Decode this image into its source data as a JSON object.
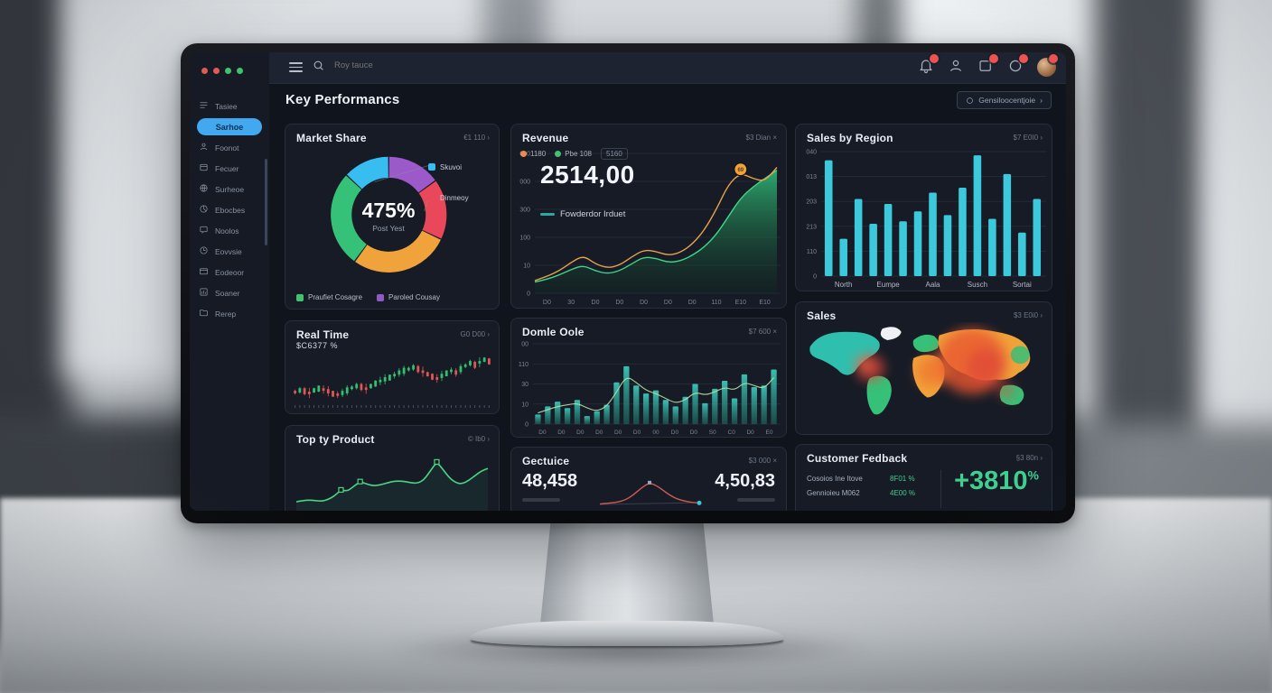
{
  "window": {
    "dot_colors": [
      "#e05c55",
      "#e05c55",
      "#42c26d",
      "#42c26d"
    ]
  },
  "topbar": {
    "search_placeholder": "Roy tauce",
    "icons": [
      {
        "name": "notification-bell-icon",
        "glyph": "bell",
        "badge": true
      },
      {
        "name": "user-icon",
        "glyph": "user",
        "badge": false
      },
      {
        "name": "inbox-icon",
        "glyph": "inbox",
        "badge": true
      },
      {
        "name": "alert-ring-icon",
        "glyph": "ring",
        "badge": true
      },
      {
        "name": "avatar",
        "glyph": "avatar",
        "badge": true
      }
    ]
  },
  "sidebar": {
    "active_color": "#42a9f0",
    "items": [
      {
        "label": "Tasiee",
        "icon": "list",
        "active": false
      },
      {
        "label": "Sarhoe",
        "icon": "",
        "active": true
      },
      {
        "label": "Foonot",
        "icon": "user",
        "active": false
      },
      {
        "label": "Fecuer",
        "icon": "box",
        "active": false
      },
      {
        "label": "Surheoe",
        "icon": "globe",
        "active": false
      },
      {
        "label": "Ebocbes",
        "icon": "pie",
        "active": false
      },
      {
        "label": "Noolos",
        "icon": "chat",
        "active": false
      },
      {
        "label": "Eovvsie",
        "icon": "clock",
        "active": false
      },
      {
        "label": "Eodeoor",
        "icon": "card",
        "active": false
      },
      {
        "label": "Soaner",
        "icon": "chart",
        "active": false
      },
      {
        "label": "Rerep",
        "icon": "folder",
        "active": false
      }
    ]
  },
  "page": {
    "title": "Key Performancs",
    "action_button": "Gensiloocentjoie",
    "action_chevron": "›"
  },
  "cards": {
    "market_share": {
      "title": "Market Share",
      "action": "€1 110 ›"
    },
    "revenue": {
      "title": "Revenue",
      "action": "$3 Dian ×",
      "big_value": "2514,00",
      "line_label": "Fowderdor Irduet"
    },
    "sales_region": {
      "title": "Sales by Region",
      "action": "$7 E0I0 ›"
    },
    "real_time": {
      "title": "Real Time",
      "action": "G0 D00 ›",
      "sub_value": "$C6377 %"
    },
    "top_product": {
      "title": "Top ty Product",
      "action": "© Ib0 ›"
    },
    "domle": {
      "title": "Domle Oole",
      "action": "$7 600 ×"
    },
    "sales_map": {
      "title": "Sales",
      "action": "$3 E0i0 ›"
    },
    "gectuice": {
      "title": "Gectuice",
      "action": "$3 000 ×",
      "left_value": "48,458",
      "right_value": "4,50,83"
    },
    "feedback": {
      "title": "Customer Fedback",
      "action": "§3 80n ›",
      "rows": [
        {
          "label": "Cosoios Ine Itove",
          "value": "8F01 %"
        },
        {
          "label": "Gennioieu M062",
          "value": "4E00 %"
        }
      ],
      "big_value": "+3810",
      "big_suffix": "%"
    }
  },
  "chart_data": [
    {
      "id": "market-share",
      "type": "pie",
      "title": "Market Share",
      "center_value": "475%",
      "center_label": "Post Yest",
      "segments": [
        {
          "label": "Paroled Cousay",
          "value": 15,
          "color": "#9b59c9"
        },
        {
          "label": "Dinmeoy",
          "value": 17,
          "color": "#e8485a"
        },
        {
          "label": "",
          "value": 28,
          "color": "#f0a33a"
        },
        {
          "label": "Praufiet Cosagre",
          "value": 27,
          "color": "#35c178"
        },
        {
          "label": "Skuvoi",
          "value": 13,
          "color": "#38bdf0"
        }
      ],
      "callouts": [
        {
          "label": "Skuvoi",
          "color": "#38bdf0",
          "seg": 4
        },
        {
          "label": "Dinmeoy",
          "color": "#e8485a",
          "seg": 1
        }
      ],
      "legend": [
        {
          "label": "Praufiet Cosagre",
          "color": "#42c26d"
        },
        {
          "label": "Paroled Cousay",
          "color": "#8e5bc6"
        }
      ]
    },
    {
      "id": "revenue",
      "type": "arealine",
      "title": "Revenue",
      "legend": [
        {
          "label": "1180",
          "color": "#f08a4b"
        },
        {
          "label": "Pbe 108",
          "color": "#42c26d"
        },
        {
          "label": "5160",
          "chip": true
        }
      ],
      "yticks": [
        "000",
        "000",
        "300",
        "100",
        "10",
        "0"
      ],
      "xticks": [
        "D0",
        "30",
        "D0",
        "D0",
        "D0",
        "D0",
        "D0",
        "110",
        "E10",
        "E10"
      ],
      "area_color": "#2fae72",
      "line_color": "#e8a24b",
      "area": [
        8,
        10,
        13,
        17,
        20,
        16,
        14,
        16,
        21,
        26,
        25,
        22,
        23,
        27,
        33,
        42,
        55,
        68,
        76,
        82,
        88
      ],
      "line": [
        9,
        12,
        16,
        22,
        27,
        21,
        18,
        20,
        26,
        31,
        30,
        27,
        29,
        35,
        45,
        60,
        78,
        86,
        82,
        80,
        90
      ],
      "marker_index": 17,
      "marker_label": "69",
      "ylim": [
        0,
        100
      ]
    },
    {
      "id": "sales-region",
      "type": "bar",
      "title": "Sales by Region",
      "bar_color": "#3cc9dc",
      "yticks": [
        "040",
        "013",
        "203",
        "213",
        "110",
        "0"
      ],
      "xticks": [
        "North",
        "Eumpe",
        "Aala",
        "Susch",
        "Sortai"
      ],
      "values": [
        93,
        30,
        62,
        42,
        58,
        44,
        52,
        67,
        49,
        71,
        97,
        46,
        82,
        35,
        62
      ],
      "ylim": [
        0,
        100
      ]
    },
    {
      "id": "real-time",
      "type": "candles",
      "title": "Real Time",
      "up_color": "#31c06f",
      "down_color": "#e25555",
      "mids": [
        24,
        26,
        25,
        23,
        26,
        28,
        27,
        25,
        22,
        21,
        23,
        26,
        29,
        31,
        30,
        28,
        31,
        34,
        37,
        39,
        41,
        44,
        47,
        49,
        51,
        53,
        51,
        48,
        45,
        42,
        40,
        43,
        46,
        49,
        47,
        51,
        55,
        58,
        56,
        59,
        62,
        60
      ],
      "ups": [
        0,
        1,
        0,
        0,
        1,
        1,
        0,
        0,
        0,
        0,
        1,
        1,
        1,
        1,
        0,
        0,
        1,
        1,
        1,
        1,
        1,
        1,
        1,
        1,
        1,
        1,
        0,
        0,
        0,
        0,
        0,
        1,
        1,
        1,
        0,
        1,
        1,
        1,
        0,
        1,
        1,
        0
      ]
    },
    {
      "id": "top-product",
      "type": "line",
      "title": "Top ty Product",
      "color": "#4ad584",
      "tick_color": "#c0564f",
      "values": [
        18,
        20,
        21,
        20,
        19,
        22,
        28,
        38,
        36,
        44,
        52,
        48,
        45,
        46,
        49,
        52,
        53,
        52,
        50,
        49,
        55,
        70,
        85,
        72,
        58,
        50,
        48,
        54,
        62,
        70,
        74
      ],
      "marker_indices": [
        7,
        10,
        22
      ]
    },
    {
      "id": "domle",
      "type": "barline",
      "title": "Domle Oole",
      "bar_color_top": "#3fd0c0",
      "bar_color_bottom": "#1d5f58",
      "line_color": "#b9e6a8",
      "yticks": [
        "00",
        "110",
        "30",
        "10",
        "0"
      ],
      "xticks": [
        "D0",
        "D0",
        "D0",
        "D0",
        "D0",
        "D0",
        "00",
        "D0",
        "D0",
        "S0",
        "C0",
        "D0",
        "E0"
      ],
      "bars": [
        12,
        22,
        28,
        20,
        30,
        10,
        16,
        24,
        52,
        72,
        48,
        38,
        42,
        30,
        22,
        34,
        50,
        26,
        44,
        54,
        32,
        62,
        46,
        48,
        68
      ],
      "line": [
        14,
        18,
        22,
        24,
        26,
        20,
        16,
        22,
        40,
        60,
        52,
        42,
        38,
        32,
        26,
        30,
        40,
        36,
        40,
        46,
        42,
        52,
        48,
        44,
        58
      ],
      "ylim": [
        0,
        100
      ]
    },
    {
      "id": "gectuice-spark",
      "type": "spark",
      "title": "Gectuice",
      "color": "#cf5a52",
      "values": [
        4,
        6,
        9,
        15,
        30,
        52,
        68,
        57,
        38,
        22,
        14,
        9,
        7
      ],
      "peak_index": 6,
      "end_index": 12
    },
    {
      "id": "sales-map",
      "type": "map",
      "title": "Sales",
      "palette": [
        "#35c178",
        "#2fbfae",
        "#f0a33a",
        "#e04a3a",
        "#eef2f5"
      ]
    }
  ]
}
